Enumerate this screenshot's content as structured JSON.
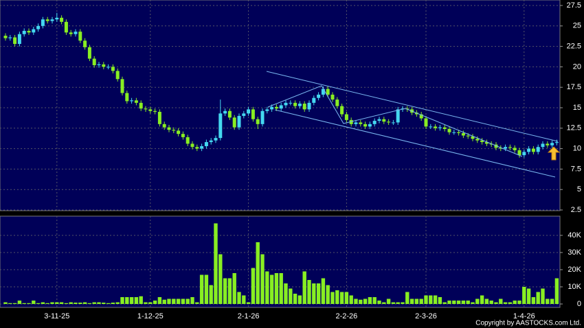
{
  "chart_data": [
    {
      "type": "candlestick",
      "categories": [
        null,
        null,
        null,
        null,
        null,
        null,
        null,
        null,
        null,
        null,
        null,
        "3-11-25",
        null,
        null,
        null,
        null,
        null,
        null,
        null,
        null,
        null,
        null,
        null,
        null,
        null,
        null,
        null,
        null,
        null,
        null,
        null,
        "1-12-25",
        null,
        null,
        null,
        null,
        null,
        null,
        null,
        null,
        null,
        null,
        null,
        null,
        null,
        null,
        null,
        null,
        null,
        null,
        null,
        null,
        "2-1-26",
        null,
        null,
        null,
        null,
        null,
        null,
        null,
        null,
        null,
        null,
        null,
        null,
        null,
        null,
        null,
        null,
        null,
        null,
        null,
        null,
        "2-2-26",
        null,
        null,
        null,
        null,
        null,
        null,
        null,
        null,
        null,
        null,
        null,
        null,
        null,
        null,
        null,
        null,
        "2-3-26",
        null,
        null,
        null,
        null,
        null,
        null,
        null,
        null,
        null,
        null,
        null,
        null,
        null,
        null,
        null,
        null,
        null,
        null,
        null,
        null,
        "1-4-26",
        null,
        null,
        null,
        null,
        null,
        null,
        null
      ],
      "open": [
        23.8,
        23.5,
        23.6,
        22.8,
        24.0,
        24.4,
        24.2,
        24.6,
        25.0,
        25.8,
        25.6,
        25.8,
        26.0,
        25.5,
        24.2,
        24.0,
        24.3,
        23.2,
        22.4,
        21.0,
        20.2,
        20.3,
        20.0,
        20.0,
        19.5,
        18.5,
        16.8,
        15.8,
        15.9,
        15.6,
        14.9,
        14.8,
        14.6,
        14.5,
        13.0,
        12.6,
        12.3,
        12.2,
        11.8,
        11.4,
        10.6,
        10.2,
        10.0,
        10.3,
        10.8,
        11.0,
        11.3,
        14.3,
        14.6,
        13.8,
        12.6,
        14.0,
        14.3,
        14.8,
        13.6,
        13.0,
        14.6,
        14.8,
        15.1,
        14.9,
        15.3,
        15.6,
        15.6,
        15.2,
        15.5,
        14.8,
        15.6,
        16.2,
        16.6,
        17.3,
        16.6,
        16.0,
        15.2,
        14.2,
        13.5,
        13.0,
        13.2,
        13.0,
        12.7,
        13.0,
        13.4,
        13.6,
        13.3,
        13.2,
        13.2,
        14.8,
        14.9,
        14.8,
        14.4,
        14.2,
        13.7,
        12.7,
        12.7,
        12.5,
        12.6,
        12.4,
        12.0,
        12.0,
        11.9,
        11.6,
        11.5,
        11.2,
        11.0,
        10.8,
        10.6,
        10.5,
        10.1,
        10.0,
        10.2,
        10.1,
        9.8,
        9.2,
        9.6,
        10.0,
        9.6,
        10.2,
        10.6,
        10.4,
        10.7
      ],
      "high": [
        24.1,
        23.9,
        23.9,
        24.3,
        24.7,
        24.7,
        24.9,
        25.3,
        26.1,
        26.1,
        26.1,
        26.6,
        26.3,
        25.8,
        24.5,
        24.6,
        24.6,
        23.5,
        22.7,
        21.3,
        20.6,
        20.6,
        20.3,
        20.3,
        19.8,
        18.8,
        17.1,
        16.2,
        16.2,
        15.9,
        15.2,
        15.1,
        14.9,
        14.8,
        13.3,
        12.9,
        12.6,
        12.5,
        12.1,
        11.7,
        10.9,
        10.5,
        10.6,
        11.1,
        11.3,
        11.6,
        16.0,
        14.9,
        14.9,
        14.1,
        14.3,
        14.6,
        15.1,
        15.1,
        13.9,
        14.9,
        15.1,
        15.4,
        15.4,
        15.6,
        15.9,
        15.9,
        15.9,
        15.8,
        15.8,
        15.9,
        16.5,
        16.9,
        17.6,
        17.6,
        16.9,
        16.3,
        15.5,
        14.5,
        13.8,
        13.5,
        13.5,
        13.3,
        13.3,
        13.7,
        13.9,
        13.9,
        13.6,
        13.5,
        15.1,
        15.2,
        15.2,
        15.1,
        14.7,
        14.5,
        14.0,
        13.0,
        13.0,
        12.9,
        12.9,
        12.7,
        12.3,
        12.3,
        12.2,
        11.9,
        11.8,
        11.5,
        11.3,
        11.1,
        10.9,
        10.8,
        10.4,
        10.5,
        10.5,
        10.4,
        10.1,
        9.9,
        10.3,
        10.3,
        10.5,
        10.9,
        10.9,
        11.0,
        11.1
      ],
      "low": [
        23.2,
        23.2,
        22.5,
        22.5,
        23.7,
        23.9,
        23.9,
        24.3,
        24.7,
        25.3,
        25.3,
        25.5,
        25.2,
        23.9,
        23.7,
        23.7,
        22.9,
        22.1,
        20.7,
        19.9,
        19.9,
        19.7,
        19.7,
        19.2,
        18.2,
        16.5,
        15.5,
        15.5,
        15.3,
        14.6,
        14.5,
        14.3,
        14.2,
        12.7,
        12.3,
        12.0,
        11.9,
        11.5,
        11.1,
        10.3,
        9.9,
        9.7,
        9.7,
        10.0,
        10.5,
        10.7,
        11.0,
        14.0,
        13.5,
        12.3,
        12.3,
        13.7,
        14.0,
        13.3,
        12.4,
        12.7,
        14.3,
        14.5,
        14.6,
        14.6,
        15.0,
        15.3,
        14.9,
        14.9,
        14.5,
        14.5,
        15.3,
        15.9,
        16.3,
        16.3,
        15.7,
        14.9,
        13.9,
        13.2,
        12.7,
        12.7,
        12.7,
        12.4,
        12.4,
        12.7,
        13.1,
        13.0,
        12.9,
        12.9,
        12.9,
        14.5,
        14.5,
        14.1,
        13.9,
        13.4,
        12.4,
        12.4,
        12.2,
        12.2,
        12.1,
        11.7,
        11.7,
        11.6,
        11.3,
        11.2,
        10.9,
        10.7,
        10.5,
        10.3,
        10.2,
        9.8,
        9.7,
        9.7,
        9.8,
        9.5,
        8.9,
        8.9,
        9.3,
        9.3,
        9.3,
        9.9,
        10.1,
        10.1,
        10.4
      ],
      "close": [
        23.5,
        23.6,
        22.8,
        24.0,
        24.4,
        24.2,
        24.6,
        25.0,
        25.8,
        25.6,
        25.8,
        26.0,
        25.5,
        24.2,
        24.0,
        24.3,
        23.2,
        22.4,
        21.0,
        20.2,
        20.3,
        20.0,
        20.0,
        19.5,
        18.5,
        16.8,
        15.8,
        15.9,
        15.6,
        14.9,
        14.8,
        14.6,
        14.5,
        13.0,
        12.6,
        12.3,
        12.2,
        11.8,
        11.4,
        10.6,
        10.2,
        10.0,
        10.3,
        10.8,
        11.0,
        11.3,
        14.3,
        14.6,
        13.8,
        12.6,
        14.0,
        14.3,
        14.8,
        13.6,
        13.0,
        14.6,
        14.8,
        15.1,
        14.9,
        15.3,
        15.6,
        15.6,
        15.2,
        15.5,
        14.8,
        15.6,
        16.2,
        16.6,
        17.3,
        16.6,
        16.0,
        15.2,
        14.2,
        13.5,
        13.0,
        13.2,
        13.0,
        12.7,
        13.0,
        13.4,
        13.6,
        13.3,
        13.2,
        13.2,
        14.8,
        14.9,
        14.8,
        14.4,
        14.2,
        13.7,
        12.7,
        12.7,
        12.5,
        12.6,
        12.4,
        12.0,
        12.0,
        11.9,
        11.6,
        11.5,
        11.2,
        11.0,
        10.8,
        10.6,
        10.5,
        10.1,
        10.0,
        10.2,
        10.1,
        9.8,
        9.2,
        9.6,
        10.0,
        9.6,
        10.2,
        10.6,
        10.4,
        10.7,
        10.8
      ],
      "up_color": "#44d8f0",
      "down_color": "#88ee22",
      "grid": true,
      "ylim": [
        2.5,
        27.5
      ],
      "yticks": [
        2.5,
        5,
        7.5,
        10,
        12.5,
        15,
        17.5,
        20,
        22.5,
        25,
        27.5
      ]
    },
    {
      "type": "bar",
      "values": [
        1000,
        500,
        500,
        2000,
        500,
        500,
        2000,
        500,
        1000,
        500,
        1000,
        1000,
        1000,
        500,
        1000,
        800,
        800,
        1000,
        500,
        1000,
        1000,
        800,
        500,
        800,
        1000,
        4000,
        4000,
        4000,
        4000,
        4500,
        1000,
        1000,
        2000,
        4000,
        2500,
        3000,
        3000,
        3000,
        3000,
        3000,
        4000,
        1000,
        17000,
        17000,
        11000,
        47000,
        29000,
        15000,
        15000,
        18000,
        7000,
        5000,
        1000,
        21000,
        36000,
        29000,
        19000,
        17000,
        18000,
        18000,
        12000,
        9000,
        6000,
        5000,
        19000,
        14000,
        12000,
        12000,
        15000,
        11000,
        7000,
        8000,
        7000,
        7000,
        5000,
        3000,
        2500,
        3000,
        4000,
        4000,
        2000,
        1000,
        3000,
        1000,
        1000,
        1000,
        7000,
        3000,
        3000,
        3000,
        5000,
        5000,
        5000,
        4000,
        1000,
        2000,
        2000,
        2000,
        2000,
        2000,
        1000,
        3000,
        5000,
        3000,
        2000,
        1000,
        3000,
        1000,
        1000,
        2000,
        2000,
        10000,
        9000,
        4000,
        7000,
        9000,
        3000,
        3000,
        15000
      ],
      "color": "#88ee22",
      "grid": true,
      "ylim": [
        0,
        50000
      ],
      "yticks": [
        0,
        {
          "value": 10000,
          "label": "10K"
        },
        {
          "value": 20000,
          "label": "20K"
        },
        {
          "value": 30000,
          "label": "30K"
        },
        {
          "value": 40000,
          "label": "40K"
        }
      ]
    }
  ],
  "copyright": "Copyright by AASTOCKS.com Ltd."
}
